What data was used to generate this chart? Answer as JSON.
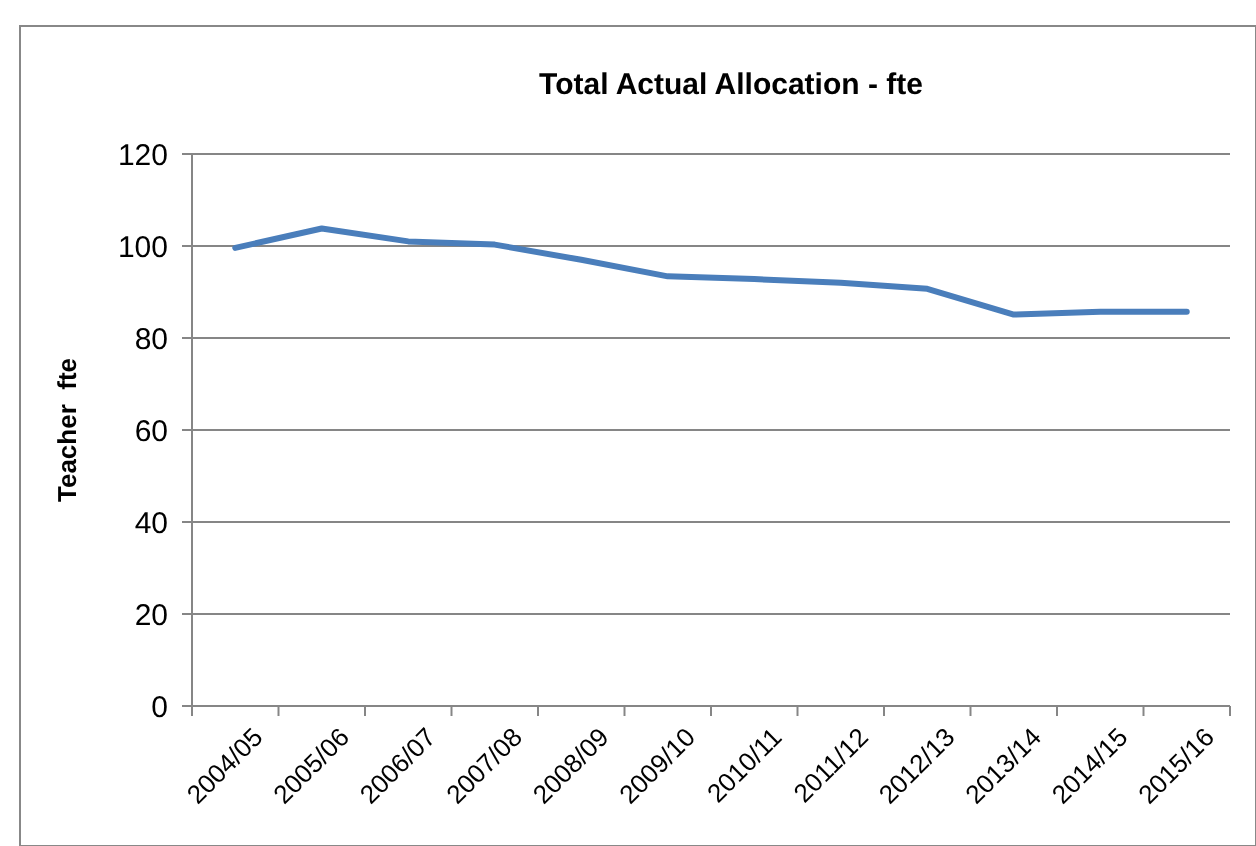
{
  "chart_data": {
    "type": "line",
    "title": "Total Actual Allocation - fte",
    "ylabel": "Teacher  fte",
    "categories": [
      "2004/05",
      "2005/06",
      "2006/07",
      "2007/08",
      "2008/09",
      "2009/10",
      "2010/11",
      "2011/12",
      "2012/13",
      "2013/14",
      "2014/15",
      "2015/16"
    ],
    "series": [
      {
        "color": "#4a7ebb",
        "values": [
          99.6,
          103.8,
          101,
          100.3,
          97,
          93.4,
          92.8,
          92,
          90.7,
          85.1,
          85.7,
          85.7
        ]
      }
    ],
    "ylim": [
      0,
      120
    ],
    "yticks": [
      0,
      20,
      40,
      60,
      80,
      100,
      120
    ],
    "grid": "y",
    "marker": "none",
    "line_style": "solid"
  }
}
